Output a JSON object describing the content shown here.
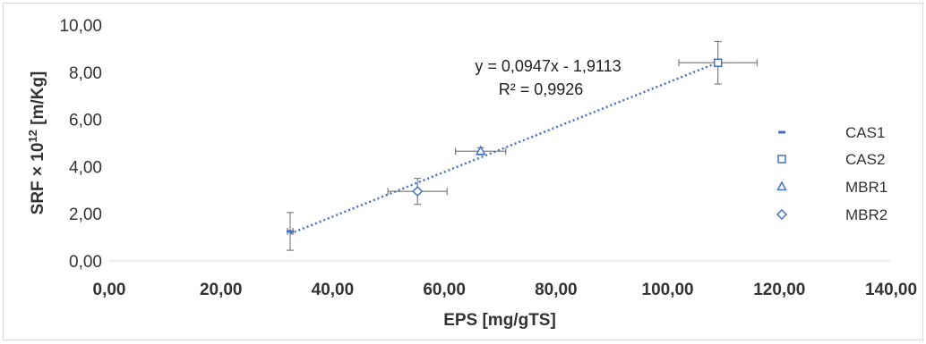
{
  "chart_data": {
    "type": "scatter",
    "xlabel": "EPS [mg/gTS]",
    "ylabel_base": "SRF × 10",
    "ylabel_sup": "12",
    "ylabel_unit": " [m/Kg]",
    "xlim": [
      0,
      140
    ],
    "ylim": [
      0,
      10
    ],
    "x_ticks": [
      0,
      20,
      40,
      60,
      80,
      100,
      120,
      140
    ],
    "y_ticks": [
      0,
      2,
      4,
      6,
      8,
      10
    ],
    "x_tick_labels": [
      "0,00",
      "20,00",
      "40,00",
      "60,00",
      "80,00",
      "100,00",
      "120,00",
      "140,00"
    ],
    "y_tick_labels": [
      "0,00",
      "2,00",
      "4,00",
      "6,00",
      "8,00",
      "10,00"
    ],
    "grid": false,
    "legend_position": "right",
    "marker_color": "#4472C4",
    "series": [
      {
        "name": "CAS1",
        "marker": "dash",
        "x": 32.4,
        "y": 1.25,
        "x_err": 0.5,
        "y_err": 0.8
      },
      {
        "name": "CAS2",
        "marker": "square",
        "x": 109.0,
        "y": 8.4,
        "x_err": 7.0,
        "y_err": 0.9
      },
      {
        "name": "MBR1",
        "marker": "triangle",
        "x": 66.5,
        "y": 4.65,
        "x_err": 4.5,
        "y_err": 0.15
      },
      {
        "name": "MBR2",
        "marker": "diamond",
        "x": 55.2,
        "y": 2.95,
        "x_err": 5.3,
        "y_err": 0.55
      }
    ],
    "trendline": {
      "slope": 0.0947,
      "intercept": -1.9113,
      "x_range": [
        32.4,
        109.0
      ],
      "equation_label": "y = 0,0947x - 1,9113",
      "r2_label": "R² = 0,9926"
    }
  }
}
